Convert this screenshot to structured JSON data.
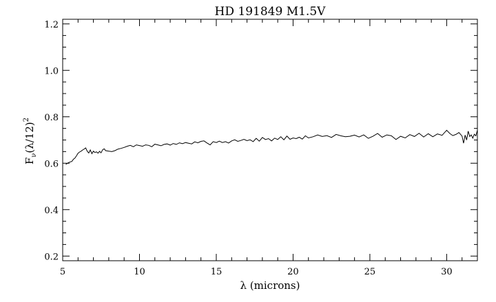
{
  "chart_data": {
    "type": "line",
    "title": "HD 191849 M1.5V",
    "xlabel": "λ (microns)",
    "ylabel_parts": {
      "base": "F",
      "sub": "ν",
      "mid": "(λ/12)",
      "sup": "2"
    },
    "xlim": [
      5,
      32
    ],
    "ylim": [
      0.18,
      1.22
    ],
    "x_ticks": [
      5,
      10,
      15,
      20,
      25,
      30
    ],
    "y_ticks": [
      0.2,
      0.4,
      0.6,
      0.8,
      1.0,
      1.2
    ],
    "x_tick_labels": [
      "5",
      "10",
      "15",
      "20",
      "25",
      "30"
    ],
    "y_tick_labels": [
      "0.2",
      "0.4",
      "0.6",
      "0.8",
      "1.0",
      "1.2"
    ],
    "grid": false,
    "series": [
      {
        "color": "#000000",
        "x": [
          5.2,
          5.4,
          5.6,
          5.7,
          5.8,
          5.9,
          6.0,
          6.1,
          6.2,
          6.3,
          6.4,
          6.5,
          6.6,
          6.7,
          6.8,
          6.9,
          7.0,
          7.1,
          7.2,
          7.3,
          7.4,
          7.5,
          7.6,
          7.7,
          7.8,
          8.0,
          8.2,
          8.4,
          8.6,
          8.8,
          9.0,
          9.2,
          9.4,
          9.6,
          9.8,
          10.0,
          10.2,
          10.4,
          10.6,
          10.8,
          11.0,
          11.2,
          11.4,
          11.6,
          11.8,
          12.0,
          12.2,
          12.4,
          12.6,
          12.8,
          13.0,
          13.2,
          13.4,
          13.6,
          13.8,
          14.0,
          14.2,
          14.4,
          14.6,
          14.8,
          15.0,
          15.2,
          15.4,
          15.6,
          15.8,
          16.0,
          16.2,
          16.4,
          16.6,
          16.8,
          17.0,
          17.2,
          17.4,
          17.6,
          17.8,
          18.0,
          18.2,
          18.4,
          18.6,
          18.8,
          19.0,
          19.2,
          19.4,
          19.6,
          19.8,
          20.0,
          20.2,
          20.4,
          20.6,
          20.8,
          21.0,
          21.3,
          21.6,
          21.9,
          22.2,
          22.5,
          22.8,
          23.1,
          23.4,
          23.7,
          24.0,
          24.3,
          24.6,
          24.9,
          25.2,
          25.5,
          25.8,
          26.1,
          26.4,
          26.7,
          27.0,
          27.3,
          27.6,
          27.9,
          28.2,
          28.5,
          28.8,
          29.1,
          29.4,
          29.7,
          30.0,
          30.2,
          30.4,
          30.6,
          30.8,
          31.0,
          31.1,
          31.2,
          31.3,
          31.4,
          31.5,
          31.6,
          31.7,
          31.8,
          31.9,
          32.0
        ],
        "y": [
          0.595,
          0.603,
          0.608,
          0.617,
          0.622,
          0.632,
          0.643,
          0.648,
          0.652,
          0.657,
          0.661,
          0.666,
          0.651,
          0.644,
          0.657,
          0.641,
          0.652,
          0.646,
          0.649,
          0.643,
          0.651,
          0.645,
          0.658,
          0.662,
          0.654,
          0.652,
          0.65,
          0.654,
          0.661,
          0.664,
          0.668,
          0.673,
          0.677,
          0.671,
          0.679,
          0.676,
          0.673,
          0.679,
          0.677,
          0.671,
          0.682,
          0.679,
          0.675,
          0.681,
          0.683,
          0.678,
          0.685,
          0.681,
          0.688,
          0.684,
          0.689,
          0.686,
          0.683,
          0.692,
          0.688,
          0.694,
          0.696,
          0.687,
          0.679,
          0.693,
          0.689,
          0.695,
          0.689,
          0.693,
          0.687,
          0.696,
          0.701,
          0.694,
          0.698,
          0.703,
          0.697,
          0.701,
          0.693,
          0.707,
          0.695,
          0.711,
          0.702,
          0.706,
          0.696,
          0.708,
          0.702,
          0.714,
          0.701,
          0.717,
          0.703,
          0.709,
          0.706,
          0.712,
          0.704,
          0.718,
          0.709,
          0.714,
          0.722,
          0.715,
          0.719,
          0.711,
          0.724,
          0.718,
          0.714,
          0.716,
          0.721,
          0.713,
          0.722,
          0.707,
          0.716,
          0.728,
          0.712,
          0.722,
          0.718,
          0.702,
          0.716,
          0.709,
          0.723,
          0.715,
          0.729,
          0.713,
          0.727,
          0.714,
          0.726,
          0.72,
          0.742,
          0.728,
          0.719,
          0.724,
          0.732,
          0.717,
          0.686,
          0.721,
          0.7,
          0.738,
          0.715,
          0.722,
          0.708,
          0.725,
          0.718,
          0.742
        ]
      }
    ]
  }
}
